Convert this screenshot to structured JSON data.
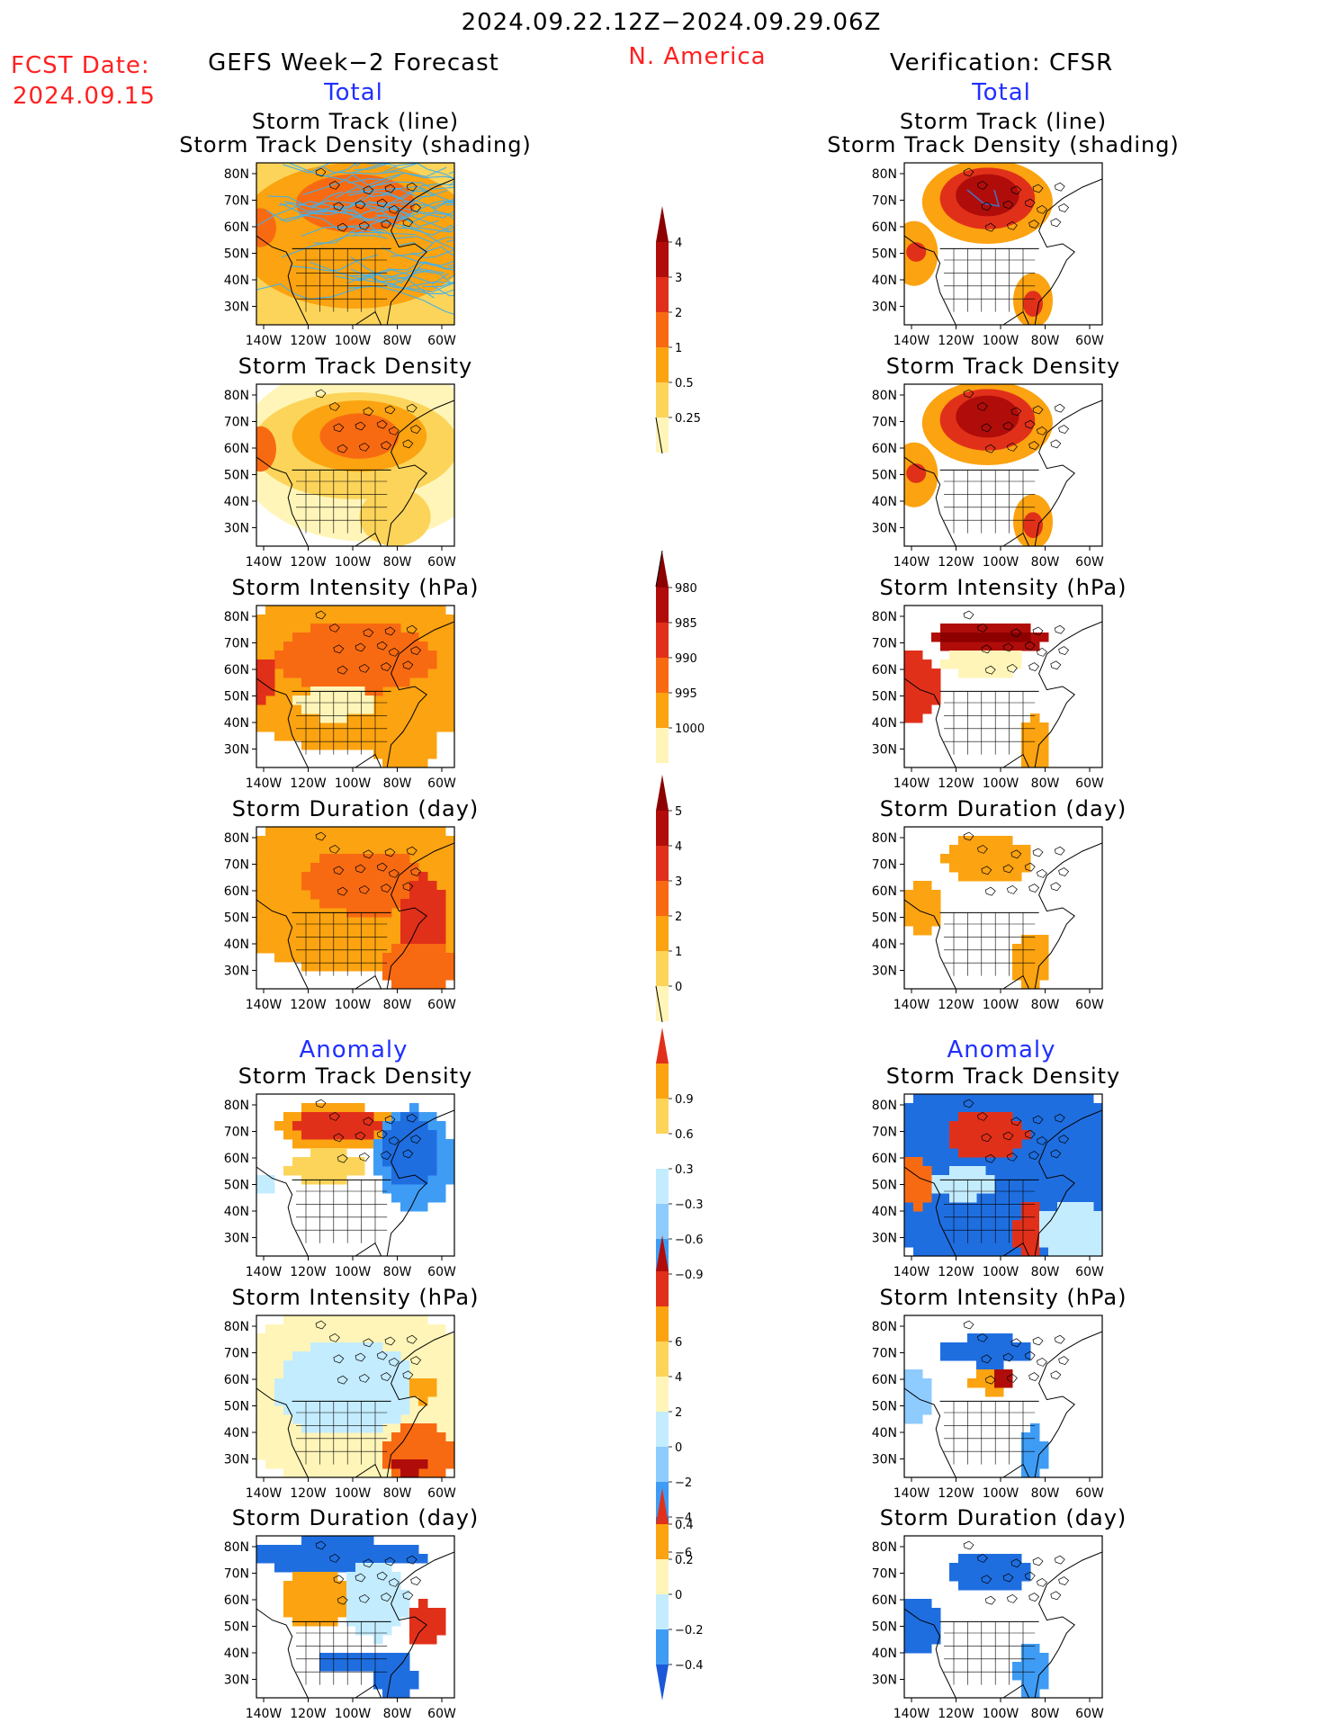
{
  "header": {
    "period": "2024.09.22.12Z−2024.09.29.06Z",
    "region": "N. America",
    "fcst_label": "FCST Date:",
    "fcst_date": "2024.09.15",
    "left_title": "GEFS Week−2 Forecast",
    "right_title": "Verification: CFSR",
    "total_label": "Total",
    "anomaly_label": "Anomaly"
  },
  "panel_titles": {
    "track_line": "Storm Track (line)",
    "track_shading": "Storm Track Density (shading)",
    "density": "Storm Track Density",
    "intensity": "Storm Intensity (hPa)",
    "duration": "Storm Duration (day)"
  },
  "axes": {
    "lat_ticks": [
      "80N",
      "70N",
      "60N",
      "50N",
      "40N",
      "30N"
    ],
    "lon_ticks": [
      "140W",
      "120W",
      "100W",
      "80W",
      "60W"
    ]
  },
  "colors": {
    "c1": "#fff5b8",
    "c2": "#fcd45a",
    "c3": "#fba310",
    "c4": "#f86a12",
    "c5": "#e1301a",
    "c6": "#b00d0a",
    "c7": "#8c0000",
    "b1": "#c4ecff",
    "b2": "#8ecbff",
    "b3": "#3f9cf4",
    "b4": "#1f6ee0",
    "b5": "#1a58d8",
    "track_line": "#45b0e8"
  },
  "chart_data": [
    {
      "type": "heatmap",
      "id": "colorbar_density_total",
      "levels": [
        0.25,
        0.5,
        1,
        2,
        3,
        4
      ],
      "tick_labels": [
        "0.25",
        "0.5",
        "1",
        "2",
        "3",
        "4"
      ]
    },
    {
      "type": "heatmap",
      "id": "colorbar_intensity_total",
      "levels": [
        980,
        985,
        990,
        995,
        1000
      ],
      "tick_labels": [
        "980",
        "985",
        "990",
        "995",
        "1000"
      ]
    },
    {
      "type": "heatmap",
      "id": "colorbar_duration_total",
      "levels": [
        0,
        1,
        2,
        3,
        4,
        5
      ],
      "tick_labels": [
        "0",
        "1",
        "2",
        "3",
        "4",
        "5"
      ]
    },
    {
      "type": "heatmap",
      "id": "colorbar_density_anom",
      "levels": [
        -0.9,
        -0.6,
        -0.3,
        0.3,
        0.6,
        0.9
      ],
      "tick_labels": [
        "−0.9",
        "−0.6",
        "−0.3",
        "0.3",
        "0.6",
        "0.9"
      ]
    },
    {
      "type": "heatmap",
      "id": "colorbar_intensity_anom",
      "levels": [
        -6,
        -4,
        -2,
        0,
        2,
        4,
        6
      ],
      "tick_labels": [
        "−6",
        "−4",
        "−2",
        "0",
        "2",
        "4",
        "6"
      ]
    },
    {
      "type": "heatmap",
      "id": "colorbar_duration_anom",
      "levels": [
        -0.4,
        -0.2,
        0,
        0.2,
        0.4
      ],
      "tick_labels": [
        "−0.4",
        "−0.2",
        "0",
        "0.2",
        "0.4"
      ]
    }
  ]
}
